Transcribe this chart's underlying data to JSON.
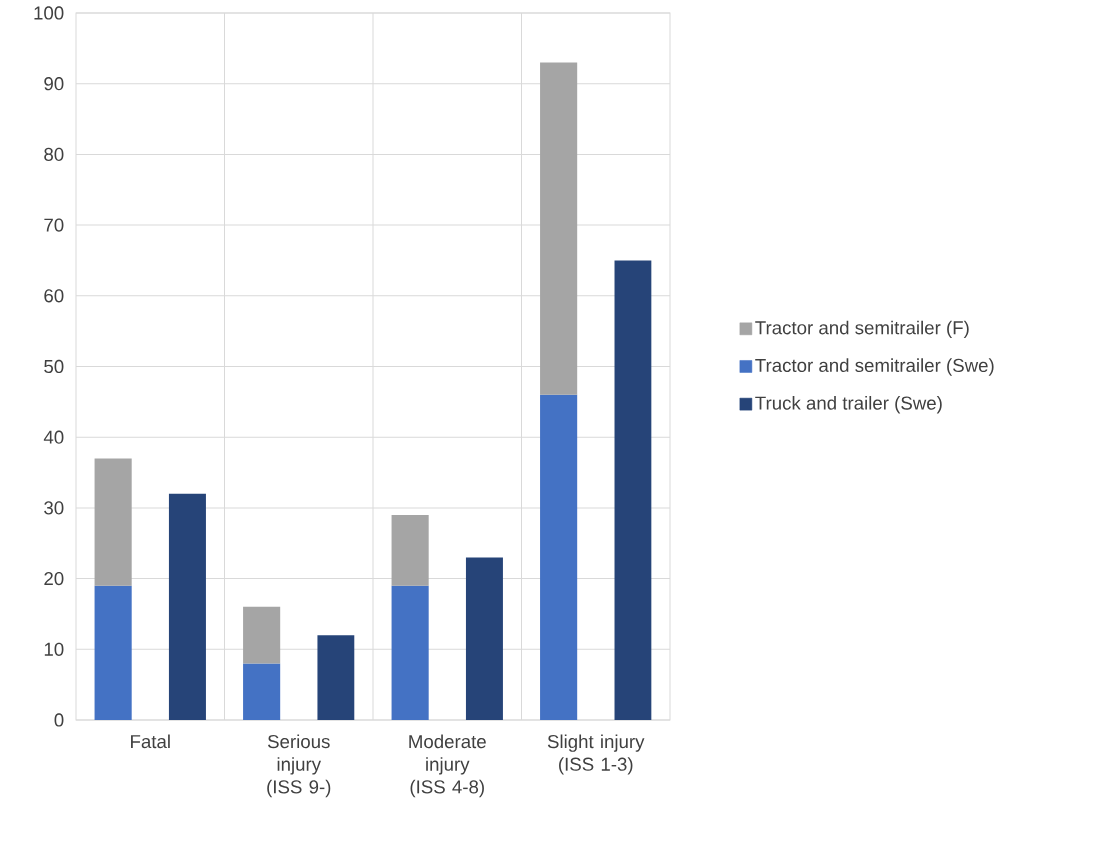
{
  "chart_data": {
    "type": "bar",
    "stacked": true,
    "categories": [
      "Fatal",
      null,
      "Serious injury (ISS 9-)",
      null,
      "Moderate injury (ISS 4-8)",
      null,
      "Slight injury (ISS 1-3)",
      null
    ],
    "series": [
      {
        "name": "Tractor and semitrailer (Swe)",
        "color": "#4472c4",
        "values": [
          19,
          null,
          8,
          null,
          19,
          null,
          46,
          null
        ]
      },
      {
        "name": "Tractor and semitrailer (F)",
        "color": "#a5a5a5",
        "values": [
          18,
          null,
          8,
          null,
          10,
          null,
          47,
          null
        ]
      },
      {
        "name": "Truck and trailer (Swe)",
        "color": "#264478",
        "values": [
          null,
          32,
          null,
          12,
          null,
          23,
          null,
          65
        ]
      }
    ],
    "ylim": [
      0,
      100
    ],
    "yticks": [
      0,
      10,
      20,
      30,
      40,
      50,
      60,
      70,
      80,
      90,
      100
    ],
    "grid": true,
    "legend": "right"
  }
}
